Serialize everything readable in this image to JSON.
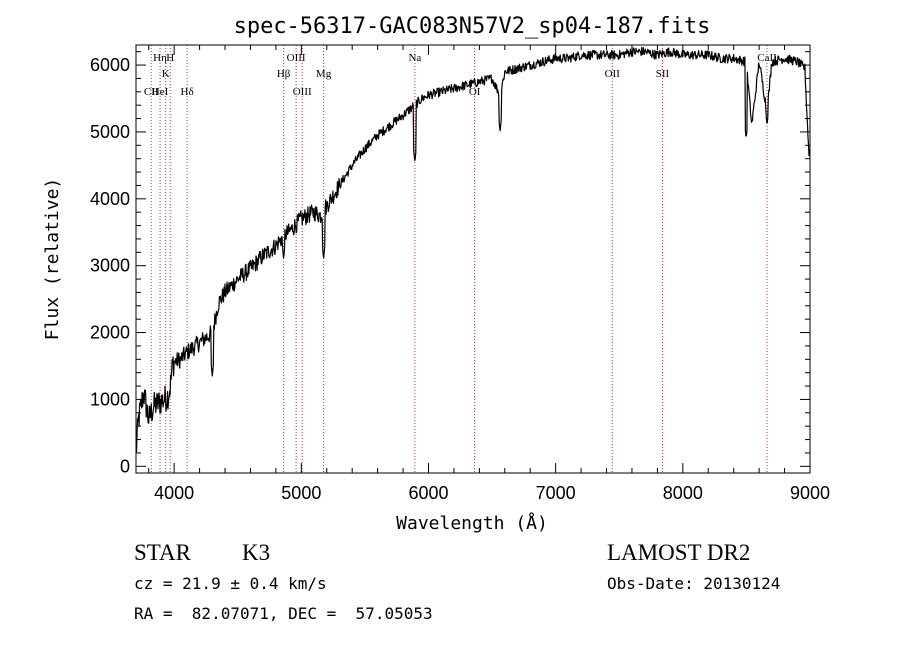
{
  "chart_data": {
    "type": "line",
    "title": "spec-56317-GAC083N57V2_sp04-187.fits",
    "xlabel": "Wavelength (Å)",
    "ylabel": "Flux (relative)",
    "xlim": [
      3700,
      9000
    ],
    "ylim": [
      -100,
      6300
    ],
    "x_ticks": [
      4000,
      5000,
      6000,
      7000,
      8000,
      9000
    ],
    "y_ticks": [
      0,
      1000,
      2000,
      3000,
      4000,
      5000,
      6000
    ],
    "grid": false,
    "line_color": "#000000",
    "marker_color": "#cc3333",
    "series": [
      {
        "x": [
          3700,
          3720,
          3760,
          3800,
          3840,
          3880,
          3920,
          3950,
          3970,
          3990,
          4050,
          4100,
          4200,
          4300,
          4350,
          4400,
          4500,
          4600,
          4700,
          4800,
          4860,
          4900,
          4950,
          5000,
          5100,
          5150,
          5200,
          5300,
          5400,
          5500,
          5600,
          5700,
          5800,
          5890,
          5950,
          6000,
          6100,
          6200,
          6300,
          6400,
          6500,
          6563,
          6600,
          6700,
          6800,
          6900,
          7000,
          7100,
          7200,
          7300,
          7400,
          7500,
          7600,
          7700,
          7800,
          7900,
          8000,
          8100,
          8200,
          8300,
          8400,
          8498,
          8542,
          8600,
          8662,
          8700,
          8800,
          8900,
          8960,
          8990
        ],
        "y": [
          200,
          700,
          1100,
          700,
          900,
          950,
          1000,
          1050,
          1200,
          1550,
          1600,
          1700,
          1850,
          2000,
          2450,
          2600,
          2800,
          2950,
          3150,
          3300,
          3450,
          3500,
          3600,
          3700,
          3800,
          3750,
          3900,
          4200,
          4500,
          4750,
          4950,
          5100,
          5250,
          5400,
          5500,
          5550,
          5600,
          5650,
          5700,
          5750,
          5800,
          5550,
          5900,
          5950,
          6000,
          6050,
          6100,
          6100,
          6150,
          6150,
          6150,
          6150,
          6200,
          6200,
          6150,
          6200,
          6150,
          6150,
          6150,
          6100,
          6100,
          6050,
          5100,
          6050,
          5300,
          6050,
          6100,
          6050,
          5950,
          4700
        ],
        "absorption_dips": [
          {
            "x": 4300,
            "y": 1350
          },
          {
            "x": 4861,
            "y": 3100
          },
          {
            "x": 5175,
            "y": 3100
          },
          {
            "x": 5893,
            "y": 4550
          },
          {
            "x": 6563,
            "y": 5000
          },
          {
            "x": 8498,
            "y": 4900
          },
          {
            "x": 8662,
            "y": 5100
          }
        ]
      }
    ],
    "line_markers": [
      {
        "x": 3934,
        "label": "K",
        "row": 2
      },
      {
        "x": 3969,
        "label": "H",
        "row": 1
      },
      {
        "x": 3889,
        "label": "Hη",
        "row": 1
      },
      {
        "x": 3820,
        "label": "CII",
        "row": 3
      },
      {
        "x": 3889,
        "label": "HeI",
        "row": 3
      },
      {
        "x": 4102,
        "label": "Hδ",
        "row": 3
      },
      {
        "x": 4861,
        "label": "Hβ",
        "row": 2
      },
      {
        "x": 4959,
        "label": "OIII",
        "row": 1
      },
      {
        "x": 5007,
        "label": "OIII",
        "row": 3
      },
      {
        "x": 5175,
        "label": "Mg",
        "row": 2
      },
      {
        "x": 5893,
        "label": "Na",
        "row": 1
      },
      {
        "x": 6363,
        "label": "OI",
        "row": 3
      },
      {
        "x": 7445,
        "label": "OII",
        "row": 2
      },
      {
        "x": 7840,
        "label": "SII",
        "row": 2
      },
      {
        "x": 8662,
        "label": "CaII",
        "row": 1
      }
    ]
  },
  "info": {
    "object_class": "STAR",
    "subclass": "K3",
    "survey": "LAMOST DR2",
    "cz": "cz = 21.9 ± 0.4 km/s",
    "obs_date": "Obs-Date: 20130124",
    "coords": "RA =  82.07071, DEC =  57.05053"
  }
}
